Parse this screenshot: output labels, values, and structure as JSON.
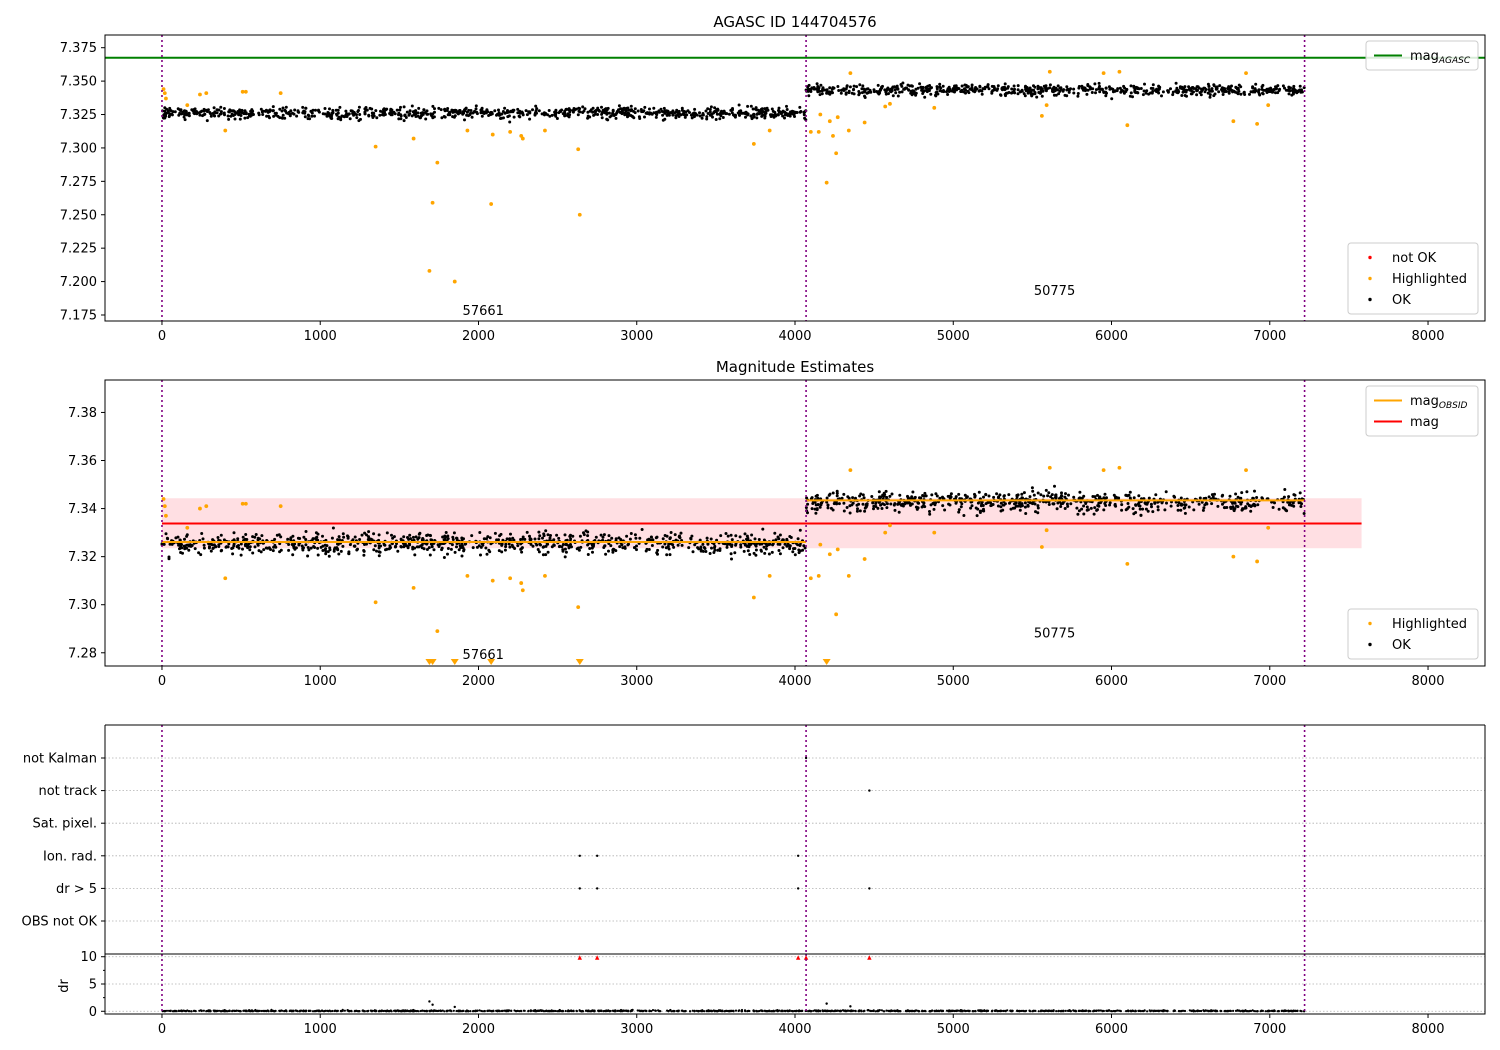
{
  "chart_data": [
    {
      "type": "scatter",
      "title": "AGASC ID 144704576",
      "xlabel": "",
      "ylabel": "",
      "xlim": [
        -360,
        8360
      ],
      "ylim": [
        7.1705,
        7.3845
      ],
      "xticks": [
        0,
        1000,
        2000,
        3000,
        4000,
        5000,
        6000,
        7000,
        8000
      ],
      "yticks": [
        7.175,
        7.2,
        7.225,
        7.25,
        7.275,
        7.3,
        7.325,
        7.35,
        7.375
      ],
      "ytick_decimals": 3,
      "obs_boundaries": [
        0,
        4070,
        7220
      ],
      "obs_annotations": [
        {
          "label": "57661",
          "x": 2030,
          "y": 7.178
        },
        {
          "label": "50775",
          "x": 5640,
          "y": 7.193
        }
      ],
      "reference_lines": [
        {
          "name": "mag",
          "sub": "AGASC",
          "y": 7.3675,
          "x_range": [
            -360,
            8360
          ],
          "color": "#008000"
        }
      ],
      "legends": [
        {
          "placement": "top-right",
          "entries": [
            {
              "kind": "line",
              "color": "#008000",
              "label": "mag",
              "sub": "AGASC"
            }
          ]
        },
        {
          "placement": "bottom-right",
          "entries": [
            {
              "kind": "marker",
              "color": "#ff0000",
              "label": "not OK"
            },
            {
              "kind": "marker",
              "color": "#ffa500",
              "label": "Highlighted"
            },
            {
              "kind": "marker",
              "color": "#000000",
              "label": "OK"
            }
          ]
        }
      ],
      "series": [
        {
          "name": "OK",
          "color": "#000000",
          "clouds": [
            {
              "x_range": [
                0,
                4070
              ],
              "center": 7.3262,
              "spread": 0.0045,
              "count": 900
            },
            {
              "x_range": [
                4070,
                7220
              ],
              "center": 7.3434,
              "spread": 0.0042,
              "count": 700
            }
          ]
        },
        {
          "name": "Highlighted",
          "color": "#ffa500",
          "points": [
            [
              10,
              7.344
            ],
            [
              18,
              7.341
            ],
            [
              25,
              7.337
            ],
            [
              160,
              7.332
            ],
            [
              240,
              7.34
            ],
            [
              280,
              7.341
            ],
            [
              400,
              7.313
            ],
            [
              510,
              7.342
            ],
            [
              530,
              7.342
            ],
            [
              750,
              7.341
            ],
            [
              1350,
              7.301
            ],
            [
              1590,
              7.307
            ],
            [
              1690,
              7.208
            ],
            [
              1710,
              7.259
            ],
            [
              1740,
              7.289
            ],
            [
              1850,
              7.2
            ],
            [
              1930,
              7.313
            ],
            [
              2080,
              7.258
            ],
            [
              2090,
              7.31
            ],
            [
              2200,
              7.312
            ],
            [
              2270,
              7.309
            ],
            [
              2280,
              7.307
            ],
            [
              2420,
              7.313
            ],
            [
              2630,
              7.299
            ],
            [
              2640,
              7.25
            ],
            [
              3740,
              7.303
            ],
            [
              3840,
              7.313
            ],
            [
              4100,
              7.312
            ],
            [
              4150,
              7.312
            ],
            [
              4160,
              7.325
            ],
            [
              4200,
              7.274
            ],
            [
              4220,
              7.32
            ],
            [
              4240,
              7.309
            ],
            [
              4260,
              7.296
            ],
            [
              4270,
              7.323
            ],
            [
              4340,
              7.313
            ],
            [
              4350,
              7.356
            ],
            [
              4440,
              7.319
            ],
            [
              4570,
              7.331
            ],
            [
              4600,
              7.333
            ],
            [
              4880,
              7.33
            ],
            [
              5560,
              7.324
            ],
            [
              5590,
              7.332
            ],
            [
              5610,
              7.357
            ],
            [
              5950,
              7.356
            ],
            [
              6050,
              7.357
            ],
            [
              6100,
              7.317
            ],
            [
              6770,
              7.32
            ],
            [
              6850,
              7.356
            ],
            [
              6920,
              7.318
            ],
            [
              6990,
              7.332
            ]
          ]
        }
      ]
    },
    {
      "type": "scatter",
      "title": "Magnitude Estimates",
      "xlabel": "",
      "ylabel": "",
      "xlim": [
        -360,
        8360
      ],
      "ylim": [
        7.2745,
        7.3935
      ],
      "xticks": [
        0,
        1000,
        2000,
        3000,
        4000,
        5000,
        6000,
        7000,
        8000
      ],
      "yticks": [
        7.28,
        7.3,
        7.32,
        7.34,
        7.36,
        7.38
      ],
      "ytick_decimals": 2,
      "obs_boundaries": [
        0,
        4070,
        7220
      ],
      "obs_annotations": [
        {
          "label": "57661",
          "x": 2030,
          "y": 7.279
        },
        {
          "label": "50775",
          "x": 5640,
          "y": 7.288
        }
      ],
      "band": {
        "y0": 7.3235,
        "y1": 7.3443,
        "x_range": [
          0,
          7580
        ],
        "color": "#ffc0c8",
        "opacity": 0.5
      },
      "reference_lines": [
        {
          "name": "mag",
          "y": 7.3338,
          "x_range": [
            0,
            7580
          ],
          "color": "#ff0000"
        },
        {
          "name": "mag",
          "sub": "OBSID",
          "y": 7.3261,
          "x_range": [
            0,
            4070
          ],
          "color": "#ffa500"
        },
        {
          "name": "mag",
          "sub": "OBSID",
          "y": 7.3434,
          "x_range": [
            4070,
            7220
          ],
          "color": "#ffa500"
        }
      ],
      "legends": [
        {
          "placement": "top-right",
          "entries": [
            {
              "kind": "line",
              "color": "#ffa500",
              "label": "mag",
              "sub": "OBSID"
            },
            {
              "kind": "line",
              "color": "#ff0000",
              "label": "mag"
            }
          ]
        },
        {
          "placement": "bottom-right",
          "entries": [
            {
              "kind": "marker",
              "color": "#ffa500",
              "label": "Highlighted"
            },
            {
              "kind": "marker",
              "color": "#000000",
              "label": "OK"
            }
          ]
        }
      ],
      "series": [
        {
          "name": "OK",
          "color": "#000000",
          "clouds": [
            {
              "x_range": [
                0,
                4070
              ],
              "center": 7.3256,
              "spread": 0.0045,
              "count": 900
            },
            {
              "x_range": [
                4070,
                7220
              ],
              "center": 7.3427,
              "spread": 0.0042,
              "count": 700
            }
          ]
        },
        {
          "name": "Highlighted",
          "color": "#ffa500",
          "points": [
            [
              10,
              7.344
            ],
            [
              18,
              7.341
            ],
            [
              25,
              7.337
            ],
            [
              160,
              7.332
            ],
            [
              240,
              7.34
            ],
            [
              280,
              7.341
            ],
            [
              400,
              7.311
            ],
            [
              510,
              7.342
            ],
            [
              530,
              7.342
            ],
            [
              750,
              7.341
            ],
            [
              1350,
              7.301
            ],
            [
              1590,
              7.307
            ],
            [
              1740,
              7.289
            ],
            [
              1930,
              7.312
            ],
            [
              2090,
              7.31
            ],
            [
              2200,
              7.311
            ],
            [
              2270,
              7.309
            ],
            [
              2280,
              7.306
            ],
            [
              2420,
              7.312
            ],
            [
              2630,
              7.299
            ],
            [
              3740,
              7.303
            ],
            [
              3840,
              7.312
            ],
            [
              4100,
              7.311
            ],
            [
              4150,
              7.312
            ],
            [
              4160,
              7.325
            ],
            [
              4220,
              7.321
            ],
            [
              4260,
              7.296
            ],
            [
              4270,
              7.323
            ],
            [
              4340,
              7.312
            ],
            [
              4350,
              7.356
            ],
            [
              4440,
              7.319
            ],
            [
              4570,
              7.33
            ],
            [
              4600,
              7.333
            ],
            [
              4880,
              7.33
            ],
            [
              5560,
              7.324
            ],
            [
              5590,
              7.331
            ],
            [
              5610,
              7.357
            ],
            [
              5950,
              7.356
            ],
            [
              6050,
              7.357
            ],
            [
              6100,
              7.317
            ],
            [
              6770,
              7.32
            ],
            [
              6850,
              7.356
            ],
            [
              6920,
              7.318
            ],
            [
              6990,
              7.332
            ]
          ]
        },
        {
          "name": "Highlighted (below axis)",
          "color": "#ffa500",
          "marker": "triangle-down",
          "points": [
            [
              1690,
              7.2753
            ],
            [
              1710,
              7.2753
            ],
            [
              1850,
              7.2753
            ],
            [
              2080,
              7.2753
            ],
            [
              2640,
              7.2753
            ],
            [
              4200,
              7.2753
            ]
          ]
        }
      ]
    },
    {
      "type": "scatter",
      "title": "",
      "xlim": [
        -360,
        8360
      ],
      "xticks": [
        0,
        1000,
        2000,
        3000,
        4000,
        5000,
        6000,
        7000,
        8000
      ],
      "obs_boundaries": [
        0,
        4070,
        7220
      ],
      "flag_rows": [
        "not Kalman",
        "not track",
        "Sat. pixel.",
        "Ion. rad.",
        "dr > 5",
        "OBS not OK"
      ],
      "flag_points": [
        {
          "row": "not Kalman",
          "x": 4070
        },
        {
          "row": "not track",
          "x": 4470
        },
        {
          "row": "Ion. rad.",
          "x": 2640
        },
        {
          "row": "Ion. rad.",
          "x": 2750
        },
        {
          "row": "Ion. rad.",
          "x": 4020
        },
        {
          "row": "dr > 5",
          "x": 2640
        },
        {
          "row": "dr > 5",
          "x": 2750
        },
        {
          "row": "dr > 5",
          "x": 4020
        },
        {
          "row": "dr > 5",
          "x": 4470
        }
      ],
      "dr_panel": {
        "ylabel": "dr",
        "ylim": [
          -0.5,
          10.5
        ],
        "yticks": [
          0,
          5,
          10
        ],
        "clip_markers": [
          2640,
          2750,
          4020,
          4070,
          4470
        ],
        "clip_color": "#ff0000",
        "spikes": [
          [
            1690,
            1.8
          ],
          [
            1710,
            1.2
          ],
          [
            1850,
            0.8
          ],
          [
            4200,
            1.4
          ],
          [
            4350,
            0.9
          ]
        ]
      }
    }
  ]
}
